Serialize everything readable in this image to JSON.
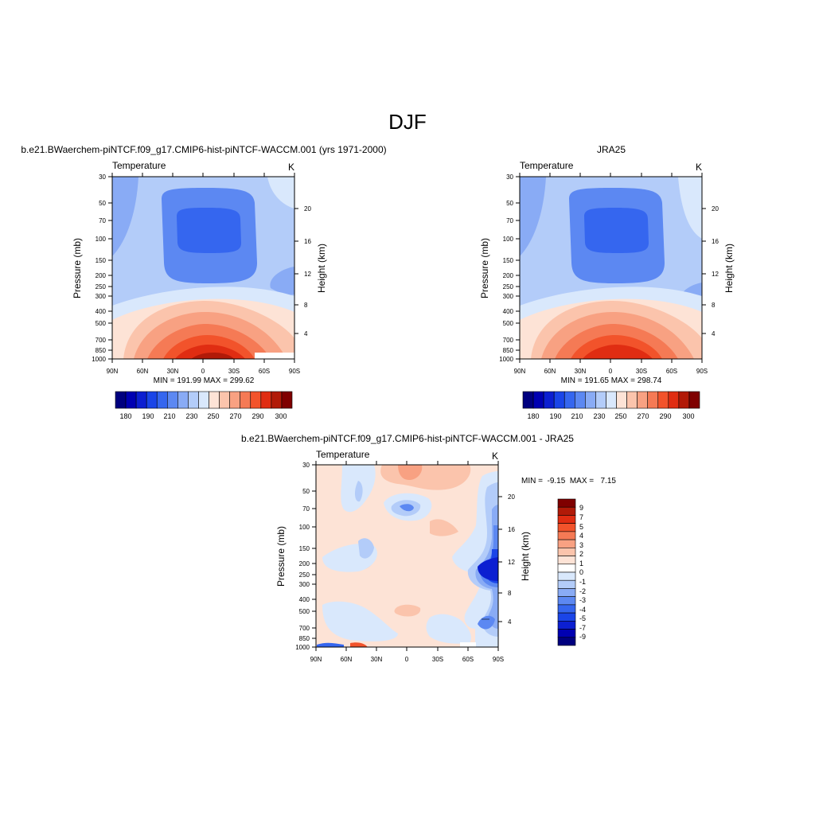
{
  "page": {
    "title": "DJF"
  },
  "colors": {
    "mean_palette": [
      "#00007f",
      "#0000b2",
      "#0c1fd1",
      "#1a45e8",
      "#3566ef",
      "#5c88f2",
      "#89abf5",
      "#b3ccf9",
      "#d9e8fc",
      "#fde3d6",
      "#fbc4ac",
      "#f8a182",
      "#f57a55",
      "#f2532b",
      "#e02d12",
      "#b11a08",
      "#7f0000"
    ],
    "diff_palette": [
      "#00007f",
      "#0000b2",
      "#0c1fd1",
      "#1a45e8",
      "#3566ef",
      "#5c88f2",
      "#89abf5",
      "#b3ccf9",
      "#d9e8fc",
      "#ffffff",
      "#fde3d6",
      "#fbc4ac",
      "#f8a182",
      "#f57a55",
      "#f2532b",
      "#e02d12",
      "#b11a08",
      "#7f0000"
    ]
  },
  "chart_data": [
    {
      "type": "heatmap",
      "title": "b.e21.BWaerchem-piNTCF.f09_g17.CMIP6-hist-piNTCF-WACCM.001 (yrs 1971-2000)",
      "left_label": "Temperature",
      "units": "K",
      "ylabel": "Pressure (mb)",
      "y2label": "Height (km)",
      "x_ticks": [
        "90N",
        "60N",
        "30N",
        "0",
        "30S",
        "60S",
        "90S"
      ],
      "y_ticks": [
        "30",
        "50",
        "70",
        "100",
        "150",
        "200",
        "250",
        "300",
        "400",
        "500",
        "700",
        "850",
        "1000"
      ],
      "y2_ticks": [
        "20",
        "16",
        "12",
        "8",
        "4"
      ],
      "stats": "MIN = 191.99  MAX = 299.62",
      "colorbar_labels": [
        "180",
        "190",
        "210",
        "230",
        "250",
        "270",
        "290",
        "300"
      ],
      "min": 191.99,
      "max": 299.62
    },
    {
      "type": "heatmap",
      "title": "JRA25",
      "left_label": "Temperature",
      "units": "K",
      "ylabel": "Pressure (mb)",
      "y2label": "Height (km)",
      "x_ticks": [
        "90N",
        "60N",
        "30N",
        "0",
        "30S",
        "60S",
        "90S"
      ],
      "y_ticks": [
        "30",
        "50",
        "70",
        "100",
        "150",
        "200",
        "250",
        "300",
        "400",
        "500",
        "700",
        "850",
        "1000"
      ],
      "y2_ticks": [
        "20",
        "16",
        "12",
        "8",
        "4"
      ],
      "stats": "MIN = 191.65  MAX = 298.74",
      "colorbar_labels": [
        "180",
        "190",
        "210",
        "230",
        "250",
        "270",
        "290",
        "300"
      ],
      "min": 191.65,
      "max": 298.74
    },
    {
      "type": "heatmap",
      "title": "b.e21.BWaerchem-piNTCF.f09_g17.CMIP6-hist-piNTCF-WACCM.001 - JRA25",
      "left_label": "Temperature",
      "units": "K",
      "ylabel": "Pressure (mb)",
      "y2label": "Height (km)",
      "x_ticks": [
        "90N",
        "60N",
        "30N",
        "0",
        "30S",
        "60S",
        "90S"
      ],
      "y_ticks": [
        "30",
        "50",
        "70",
        "100",
        "150",
        "200",
        "250",
        "300",
        "400",
        "500",
        "700",
        "850",
        "1000"
      ],
      "y2_ticks": [
        "20",
        "16",
        "12",
        "8",
        "4"
      ],
      "stats": "MIN =  -9.15  MAX =   7.15",
      "colorbar_labels": [
        "9",
        "7",
        "5",
        "4",
        "3",
        "2",
        "1",
        "0",
        "-1",
        "-2",
        "-3",
        "-4",
        "-5",
        "-7",
        "-9"
      ],
      "min": -9.15,
      "max": 7.15
    }
  ]
}
